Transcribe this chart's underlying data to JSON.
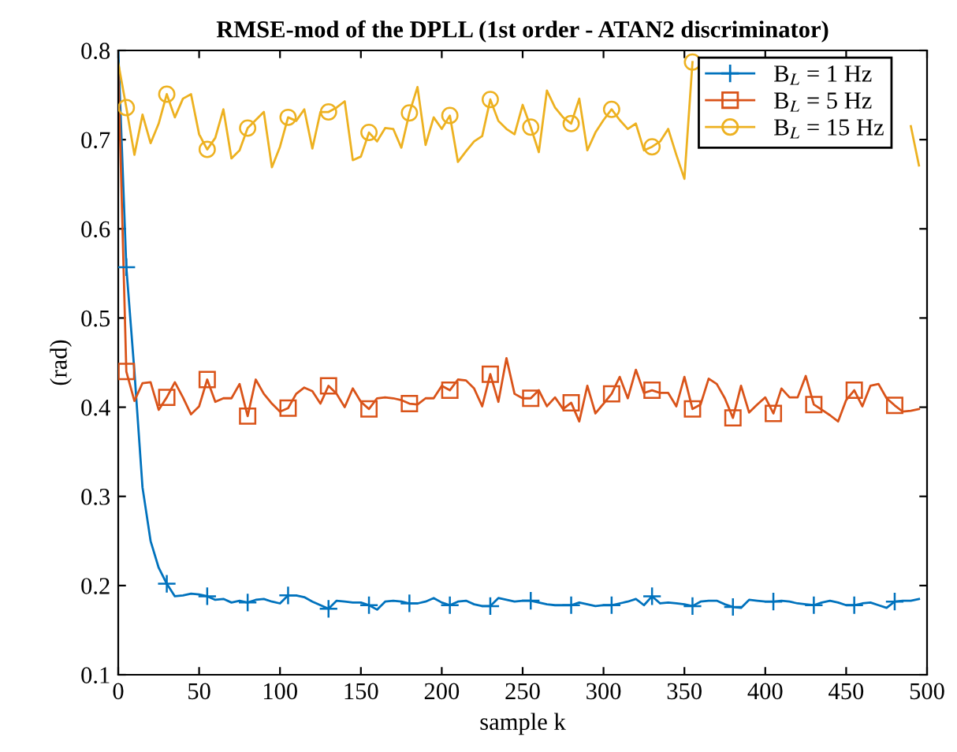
{
  "chart_data": {
    "type": "line",
    "title": "RMSE-mod of the DPLL (1st order - ATAN2 discriminator)",
    "xlabel": "sample k",
    "ylabel": "(rad)",
    "x": [
      0,
      5,
      10,
      15,
      20,
      25,
      30,
      35,
      40,
      45,
      50,
      55,
      60,
      65,
      70,
      75,
      80,
      85,
      90,
      95,
      100,
      105,
      110,
      115,
      120,
      125,
      130,
      135,
      140,
      145,
      150,
      155,
      160,
      165,
      170,
      175,
      180,
      185,
      190,
      195,
      200,
      205,
      210,
      215,
      220,
      225,
      230,
      235,
      240,
      245,
      250,
      255,
      260,
      265,
      270,
      275,
      280,
      285,
      290,
      295,
      300,
      305,
      310,
      315,
      320,
      325,
      330,
      335,
      340,
      345,
      350,
      355,
      360,
      365,
      370,
      375,
      380,
      385,
      390,
      395,
      400,
      405,
      410,
      415,
      420,
      425,
      430,
      435,
      440,
      445,
      450,
      455,
      460,
      465,
      470,
      475,
      480,
      485,
      490,
      495
    ],
    "series": [
      {
        "type": "scatter",
        "color": "#0072bd",
        "marker": "cross",
        "x": [
          5,
          30,
          55,
          80,
          105,
          130,
          155,
          180,
          205,
          230,
          255,
          280,
          305,
          330,
          355,
          380,
          405,
          430,
          455,
          480
        ],
        "values": [
          0.557,
          0.202,
          0.188,
          0.181,
          0.189,
          0.174,
          0.178,
          0.18,
          0.178,
          0.177,
          0.183,
          0.178,
          0.178,
          0.188,
          0.177,
          0.176,
          0.182,
          0.178,
          0.178,
          0.182
        ]
      },
      {
        "type": "scatter",
        "color": "#d95319",
        "marker": "square",
        "x": [
          5,
          30,
          55,
          80,
          105,
          130,
          155,
          180,
          205,
          230,
          255,
          280,
          305,
          330,
          355,
          380,
          405,
          430,
          455,
          480
        ],
        "values": [
          0.44,
          0.411,
          0.431,
          0.39,
          0.399,
          0.424,
          0.398,
          0.404,
          0.419,
          0.437,
          0.41,
          0.405,
          0.415,
          0.419,
          0.398,
          0.388,
          0.393,
          0.403,
          0.419,
          0.402
        ]
      },
      {
        "type": "scatter",
        "color": "#edb120",
        "marker": "circle",
        "x": [
          5,
          30,
          55,
          80,
          105,
          130,
          155,
          180,
          205,
          230,
          255,
          280,
          305,
          330,
          355
        ],
        "values": [
          0.736,
          0.751,
          0.689,
          0.713,
          0.725,
          0.731,
          0.708,
          0.73,
          0.727,
          0.745,
          0.714,
          0.718,
          0.734,
          0.692,
          0.787
        ]
      },
      {
        "name": "B$_{L}$ = 1 Hz",
        "color": "#0072bd",
        "values": [
          0.8,
          0.557,
          0.44,
          0.31,
          0.25,
          0.22,
          0.202,
          0.188,
          0.189,
          0.191,
          0.19,
          0.188,
          0.184,
          0.185,
          0.181,
          0.183,
          0.181,
          0.184,
          0.185,
          0.182,
          0.18,
          0.189,
          0.189,
          0.187,
          0.182,
          0.178,
          0.174,
          0.183,
          0.182,
          0.181,
          0.181,
          0.178,
          0.173,
          0.182,
          0.183,
          0.182,
          0.18,
          0.18,
          0.182,
          0.186,
          0.181,
          0.178,
          0.182,
          0.183,
          0.179,
          0.177,
          0.177,
          0.186,
          0.184,
          0.182,
          0.183,
          0.183,
          0.181,
          0.179,
          0.178,
          0.178,
          0.178,
          0.181,
          0.179,
          0.177,
          0.178,
          0.178,
          0.18,
          0.182,
          0.185,
          0.178,
          0.188,
          0.18,
          0.181,
          0.18,
          0.179,
          0.177,
          0.182,
          0.183,
          0.183,
          0.179,
          0.176,
          0.175,
          0.184,
          0.183,
          0.182,
          0.182,
          0.183,
          0.182,
          0.18,
          0.179,
          0.178,
          0.181,
          0.183,
          0.181,
          0.178,
          0.178,
          0.18,
          0.181,
          0.178,
          0.175,
          0.182,
          0.183,
          0.183,
          0.185
        ]
      },
      {
        "name": "B$_{L}$ = 5 Hz",
        "color": "#d95319",
        "values": [
          0.78,
          0.44,
          0.407,
          0.427,
          0.428,
          0.397,
          0.411,
          0.428,
          0.411,
          0.392,
          0.401,
          0.431,
          0.406,
          0.41,
          0.41,
          0.426,
          0.39,
          0.431,
          0.415,
          0.404,
          0.395,
          0.399,
          0.415,
          0.422,
          0.418,
          0.404,
          0.424,
          0.415,
          0.4,
          0.421,
          0.406,
          0.398,
          0.41,
          0.411,
          0.41,
          0.408,
          0.404,
          0.403,
          0.41,
          0.41,
          0.424,
          0.419,
          0.431,
          0.43,
          0.421,
          0.401,
          0.437,
          0.406,
          0.455,
          0.415,
          0.41,
          0.41,
          0.419,
          0.401,
          0.411,
          0.398,
          0.405,
          0.384,
          0.424,
          0.393,
          0.404,
          0.415,
          0.434,
          0.41,
          0.442,
          0.416,
          0.419,
          0.416,
          0.416,
          0.401,
          0.434,
          0.398,
          0.403,
          0.432,
          0.426,
          0.41,
          0.388,
          0.424,
          0.394,
          0.403,
          0.411,
          0.393,
          0.421,
          0.411,
          0.411,
          0.435,
          0.403,
          0.397,
          0.391,
          0.384,
          0.408,
          0.419,
          0.401,
          0.424,
          0.426,
          0.41,
          0.402,
          0.395,
          0.396,
          0.398
        ]
      },
      {
        "name": "B$_{L}$ = 15 Hz",
        "color": "#edb120",
        "values": [
          0.786,
          0.736,
          0.683,
          0.728,
          0.696,
          0.718,
          0.751,
          0.725,
          0.746,
          0.751,
          0.706,
          0.689,
          0.702,
          0.734,
          0.679,
          0.688,
          0.713,
          0.722,
          0.731,
          0.669,
          0.692,
          0.725,
          0.721,
          0.734,
          0.69,
          0.731,
          0.731,
          0.736,
          0.743,
          0.677,
          0.681,
          0.708,
          0.698,
          0.713,
          0.712,
          0.691,
          0.73,
          0.759,
          0.694,
          0.725,
          0.712,
          0.727,
          0.675,
          0.687,
          0.698,
          0.704,
          0.745,
          0.721,
          0.712,
          0.706,
          0.739,
          0.714,
          0.686,
          0.755,
          0.736,
          0.725,
          0.718,
          0.746,
          0.688,
          0.708,
          0.722,
          0.734,
          0.722,
          0.712,
          0.718,
          0.688,
          0.692,
          0.698,
          0.712,
          0.683,
          0.656,
          0.787,
          null,
          null,
          null,
          null,
          null,
          null,
          null,
          null,
          null,
          null,
          null,
          null,
          null,
          null,
          null,
          null,
          null,
          null,
          null,
          null,
          null,
          null,
          null,
          null,
          null,
          null,
          0.715,
          0.671
        ]
      }
    ],
    "xlim": [
      0,
      500
    ],
    "ylim": [
      0.1,
      0.8
    ],
    "xticks": [
      0,
      50,
      100,
      150,
      200,
      250,
      300,
      350,
      400,
      450,
      500
    ],
    "yticks": [
      0.1,
      0.2,
      0.3,
      0.4,
      0.5,
      0.6,
      0.7,
      0.8
    ],
    "legend": "top right",
    "line_style": "solid"
  }
}
